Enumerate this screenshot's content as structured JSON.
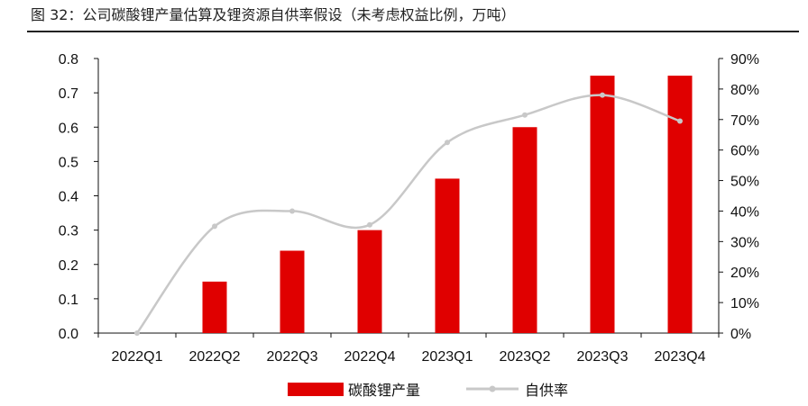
{
  "figure": {
    "title": "图 32：公司碳酸锂产量估算及锂资源自供率假设（未考虑权益比例，万吨）"
  },
  "chart_data": {
    "type": "bar+line",
    "categories": [
      "2022Q1",
      "2022Q2",
      "2022Q3",
      "2022Q4",
      "2023Q1",
      "2023Q2",
      "2023Q3",
      "2023Q4"
    ],
    "series": [
      {
        "name": "碳酸锂产量",
        "type": "bar",
        "axis": "left",
        "color": "#e00000",
        "values": [
          0,
          0.15,
          0.24,
          0.3,
          0.45,
          0.6,
          0.75,
          0.75
        ]
      },
      {
        "name": "自供率",
        "type": "line",
        "axis": "right",
        "color": "#c8c8c8",
        "values": [
          0,
          35,
          40,
          35.5,
          62.5,
          71.5,
          78,
          69.5
        ]
      }
    ],
    "y_left": {
      "ylim": [
        0,
        0.8
      ],
      "ticks": [
        "0.0",
        "0.1",
        "0.2",
        "0.3",
        "0.4",
        "0.5",
        "0.6",
        "0.7",
        "0.8"
      ]
    },
    "y_right": {
      "ylim": [
        0,
        90
      ],
      "ticks": [
        "0%",
        "10%",
        "20%",
        "30%",
        "40%",
        "50%",
        "60%",
        "70%",
        "80%",
        "90%"
      ]
    },
    "grid": false,
    "legend_position": "bottom-center"
  }
}
